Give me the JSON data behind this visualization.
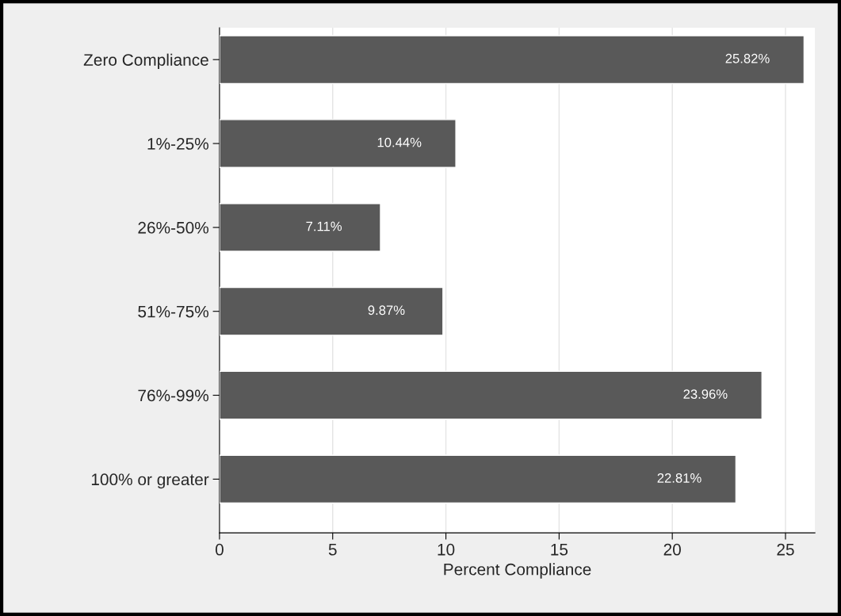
{
  "chart_data": {
    "type": "bar",
    "orientation": "horizontal",
    "xlabel": "Percent Compliance",
    "categories": [
      "Zero Compliance",
      "1%-25%",
      "26%-50%",
      "51%-75%",
      "76%-99%",
      "100% or greater"
    ],
    "values": [
      25.82,
      10.44,
      7.11,
      9.87,
      23.96,
      22.81
    ],
    "value_labels": [
      "25.82%",
      "10.44%",
      "7.11%",
      "9.87%",
      "23.96%",
      "22.81%"
    ],
    "color": "#595959",
    "xlim": [
      0,
      26.3
    ],
    "xticks": [
      0,
      5,
      10,
      15,
      20,
      25
    ],
    "grid": "x",
    "legend": false
  }
}
